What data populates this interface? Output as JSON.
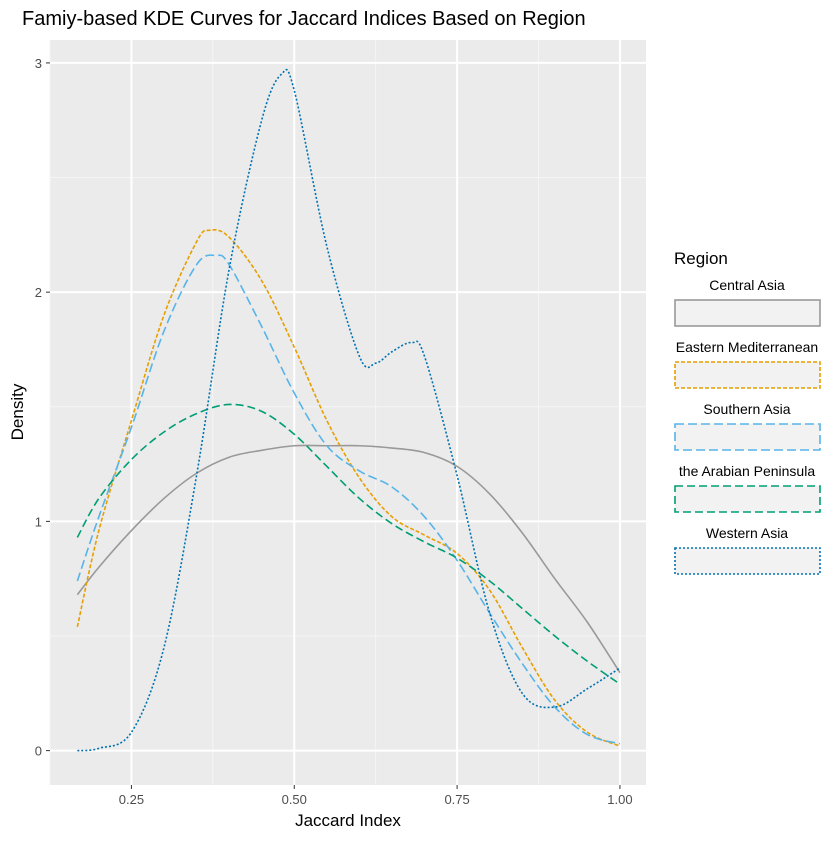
{
  "chart_data": {
    "type": "line",
    "title": "Famiy-based KDE Curves for Jaccard Indices Based on Region",
    "xlabel": "Jaccard Index",
    "ylabel": "Density",
    "xlim": [
      0.125,
      1.04
    ],
    "ylim": [
      -0.15,
      3.1
    ],
    "x_ticks": [
      0.25,
      0.5,
      0.75,
      1.0
    ],
    "x_tick_labels": [
      "0.25",
      "0.50",
      "0.75",
      "1.00"
    ],
    "y_ticks": [
      0,
      1,
      2,
      3
    ],
    "y_tick_labels": [
      "0",
      "1",
      "2",
      "3"
    ],
    "grid": true,
    "legend": {
      "title": "Region",
      "placement": "right"
    },
    "series": [
      {
        "name": "Central Asia",
        "color": "#999999",
        "dash": "solid",
        "points": [
          [
            0.167,
            0.68
          ],
          [
            0.2,
            0.8
          ],
          [
            0.25,
            0.96
          ],
          [
            0.3,
            1.1
          ],
          [
            0.35,
            1.21
          ],
          [
            0.4,
            1.28
          ],
          [
            0.45,
            1.31
          ],
          [
            0.5,
            1.33
          ],
          [
            0.55,
            1.33
          ],
          [
            0.6,
            1.33
          ],
          [
            0.65,
            1.32
          ],
          [
            0.7,
            1.3
          ],
          [
            0.75,
            1.24
          ],
          [
            0.8,
            1.12
          ],
          [
            0.85,
            0.95
          ],
          [
            0.9,
            0.75
          ],
          [
            0.95,
            0.56
          ],
          [
            1.0,
            0.34
          ]
        ]
      },
      {
        "name": "Eastern Mediterranean",
        "color": "#E69F00",
        "dash": "4,2",
        "points": [
          [
            0.167,
            0.54
          ],
          [
            0.2,
            0.96
          ],
          [
            0.25,
            1.44
          ],
          [
            0.3,
            1.9
          ],
          [
            0.35,
            2.22
          ],
          [
            0.37,
            2.27
          ],
          [
            0.4,
            2.24
          ],
          [
            0.45,
            2.05
          ],
          [
            0.5,
            1.76
          ],
          [
            0.55,
            1.44
          ],
          [
            0.6,
            1.19
          ],
          [
            0.65,
            1.02
          ],
          [
            0.7,
            0.94
          ],
          [
            0.75,
            0.86
          ],
          [
            0.8,
            0.7
          ],
          [
            0.85,
            0.45
          ],
          [
            0.9,
            0.22
          ],
          [
            0.95,
            0.08
          ],
          [
            1.0,
            0.02
          ]
        ]
      },
      {
        "name": "Southern Asia",
        "color": "#56B4E9",
        "dash": "9,4",
        "points": [
          [
            0.167,
            0.74
          ],
          [
            0.2,
            1.02
          ],
          [
            0.25,
            1.41
          ],
          [
            0.3,
            1.83
          ],
          [
            0.35,
            2.12
          ],
          [
            0.38,
            2.16
          ],
          [
            0.4,
            2.12
          ],
          [
            0.45,
            1.85
          ],
          [
            0.5,
            1.56
          ],
          [
            0.55,
            1.33
          ],
          [
            0.6,
            1.22
          ],
          [
            0.65,
            1.15
          ],
          [
            0.7,
            1.02
          ],
          [
            0.75,
            0.83
          ],
          [
            0.8,
            0.6
          ],
          [
            0.85,
            0.38
          ],
          [
            0.9,
            0.19
          ],
          [
            0.95,
            0.07
          ],
          [
            1.0,
            0.03
          ]
        ]
      },
      {
        "name": "the Arabian Peninsula",
        "color": "#009E73",
        "dash": "8,4",
        "points": [
          [
            0.167,
            0.93
          ],
          [
            0.2,
            1.1
          ],
          [
            0.25,
            1.27
          ],
          [
            0.3,
            1.39
          ],
          [
            0.35,
            1.47
          ],
          [
            0.4,
            1.51
          ],
          [
            0.45,
            1.48
          ],
          [
            0.5,
            1.38
          ],
          [
            0.55,
            1.24
          ],
          [
            0.6,
            1.1
          ],
          [
            0.65,
            0.99
          ],
          [
            0.7,
            0.91
          ],
          [
            0.75,
            0.84
          ],
          [
            0.8,
            0.74
          ],
          [
            0.85,
            0.62
          ],
          [
            0.9,
            0.5
          ],
          [
            0.95,
            0.39
          ],
          [
            1.0,
            0.29
          ]
        ]
      },
      {
        "name": "Western Asia",
        "color": "#0072B2",
        "dash": "2,2",
        "points": [
          [
            0.167,
            0.0
          ],
          [
            0.2,
            0.01
          ],
          [
            0.25,
            0.08
          ],
          [
            0.3,
            0.45
          ],
          [
            0.35,
            1.2
          ],
          [
            0.4,
            2.1
          ],
          [
            0.45,
            2.75
          ],
          [
            0.48,
            2.95
          ],
          [
            0.5,
            2.88
          ],
          [
            0.55,
            2.2
          ],
          [
            0.6,
            1.72
          ],
          [
            0.625,
            1.69
          ],
          [
            0.65,
            1.74
          ],
          [
            0.68,
            1.78
          ],
          [
            0.7,
            1.72
          ],
          [
            0.75,
            1.2
          ],
          [
            0.8,
            0.6
          ],
          [
            0.85,
            0.25
          ],
          [
            0.9,
            0.19
          ],
          [
            0.95,
            0.27
          ],
          [
            1.0,
            0.36
          ]
        ]
      }
    ]
  }
}
